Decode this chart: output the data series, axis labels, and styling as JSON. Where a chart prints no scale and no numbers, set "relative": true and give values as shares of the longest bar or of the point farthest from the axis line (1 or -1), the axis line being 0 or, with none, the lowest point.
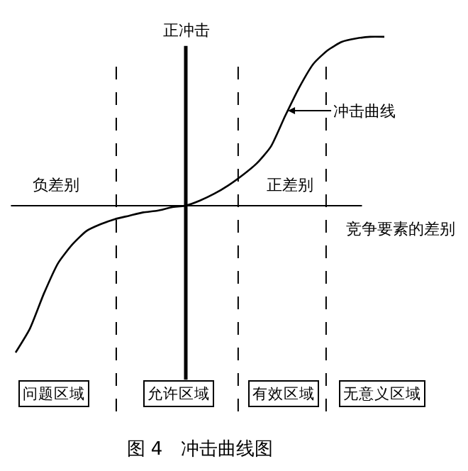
{
  "chart_data": {
    "type": "line",
    "relative": true,
    "title": "图 4　冲击曲线图",
    "xlabel": "竞争要素的差别",
    "ylabel": "正冲击",
    "categories": [
      null,
      null,
      null,
      null,
      null,
      null,
      null,
      null,
      null,
      null,
      null,
      null,
      null,
      null,
      null,
      null,
      null,
      null,
      null,
      null,
      null,
      null,
      null,
      null,
      null,
      null,
      null
    ],
    "series": [
      {
        "color": "#000000",
        "values": [
          -0.87,
          -0.73,
          -0.52,
          -0.34,
          -0.23,
          -0.15,
          -0.11,
          -0.08,
          -0.06,
          -0.04,
          -0.03,
          -0.01,
          0,
          0.03,
          0.07,
          0.12,
          0.18,
          0.25,
          0.35,
          0.53,
          0.7,
          0.84,
          0.92,
          0.97,
          0.99,
          1,
          1
        ]
      }
    ],
    "annotations": [
      "负差别",
      "正差别",
      "冲击曲线",
      "问题区域",
      "允许区域",
      "有效区域",
      "无意义区域"
    ],
    "marker": "none",
    "line_style": "solid"
  }
}
